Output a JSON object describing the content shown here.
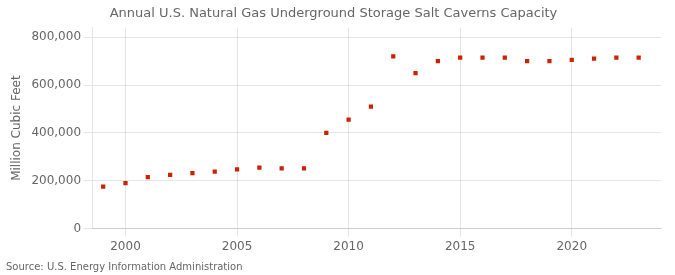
{
  "chart_data": {
    "type": "scatter",
    "title": "Annual U.S. Natural Gas Underground Storage Salt Caverns Capacity",
    "ylabel": "Million Cubic Feet",
    "annotations": [
      "Source: U.S. Energy Information Administration"
    ],
    "x": [
      1999,
      2000,
      2001,
      2002,
      2003,
      2004,
      2005,
      2006,
      2007,
      2008,
      2009,
      2010,
      2011,
      2012,
      2013,
      2014,
      2015,
      2016,
      2017,
      2018,
      2019,
      2020,
      2021,
      2022,
      2023
    ],
    "values": [
      175000,
      190000,
      215000,
      225000,
      232000,
      238000,
      248000,
      255000,
      252000,
      252000,
      400000,
      455000,
      510000,
      720000,
      650000,
      700000,
      715000,
      715000,
      715000,
      700000,
      700000,
      705000,
      710000,
      715000,
      715000
    ],
    "color": "#cc2200",
    "marker": "square",
    "xlim": [
      1998.5,
      2024.0
    ],
    "xticks": [
      2000,
      2005,
      2010,
      2015,
      2020
    ],
    "ylim": [
      0,
      840000
    ],
    "yticks": [
      0,
      {
        "value": 200000,
        "label": "200,000"
      },
      {
        "value": 400000,
        "label": "400,000"
      },
      {
        "value": 600000,
        "label": "600,000"
      },
      {
        "value": 800000,
        "label": "800,000"
      }
    ],
    "grid": true
  }
}
